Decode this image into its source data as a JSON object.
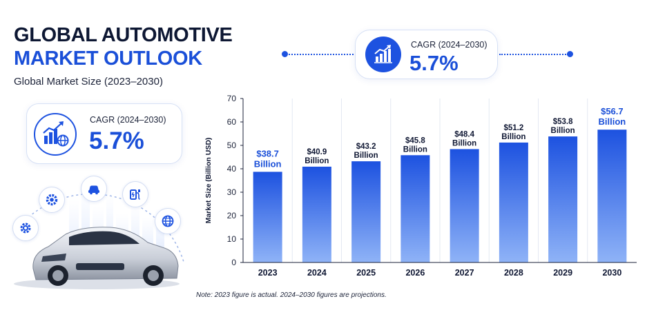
{
  "header": {
    "title_line1": "GLOBAL AUTOMOTIVE",
    "title_line2": "MARKET OUTLOOK",
    "subtitle": "Global Market Size (2023–2030)"
  },
  "cagr_left": {
    "label": "CAGR (2024–2030)",
    "value": "5.7%",
    "icon": "growth-chart-globe-icon"
  },
  "cagr_top": {
    "label": "CAGR (2024–2030)",
    "value": "5.7%",
    "icon": "growth-chart-icon"
  },
  "illustration": {
    "icons": [
      "gear-icon",
      "settings-gear-icon",
      "car-icon",
      "ev-charger-icon",
      "globe-icon"
    ],
    "image": "silver-sedan-car"
  },
  "note": "Note: 2023 figure is actual. 2024–2030 figures are projections.",
  "colors": {
    "accent": "#1a4fd8",
    "bar_top": "#1d52e0",
    "bar_bottom": "#8fb3f7",
    "title_dark": "#0d1733"
  },
  "chart_data": {
    "type": "bar",
    "categories": [
      "2023",
      "2024",
      "2025",
      "2026",
      "2027",
      "2028",
      "2029",
      "2030"
    ],
    "values": [
      38.7,
      40.9,
      43.2,
      45.8,
      48.4,
      51.2,
      53.8,
      56.7
    ],
    "data_labels": [
      [
        "$38.7",
        "Billion"
      ],
      [
        "$40.9",
        "Billion"
      ],
      [
        "$43.2",
        "Billion"
      ],
      [
        "$45.8",
        "Billion"
      ],
      [
        "$48.4",
        "Billion"
      ],
      [
        "$51.2",
        "Billion"
      ],
      [
        "$53.8",
        "Billion"
      ],
      [
        "$56.7",
        "Billion"
      ]
    ],
    "highlighted_labels": [
      "2023",
      "2030"
    ],
    "ylabel": "Market Size (Billion USD)",
    "ylim": [
      0,
      70
    ],
    "yticks": [
      "0",
      "10",
      "20",
      "30",
      "40",
      "50",
      "60",
      "70"
    ],
    "grid": "vertical-separators"
  }
}
